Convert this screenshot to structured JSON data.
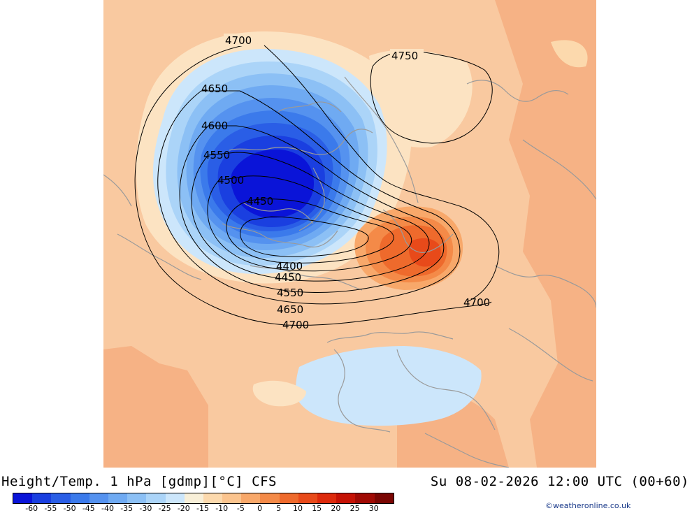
{
  "title_left": "Height/Temp. 1 hPa [gdmp][°C] CFS",
  "title_right": "Su 08-02-2026 12:00 UTC (00+60)",
  "credit": "©weatheronline.co.uk",
  "colorbar": {
    "labels": [
      "-60",
      "-55",
      "-50",
      "-45",
      "-40",
      "-35",
      "-30",
      "-25",
      "-20",
      "-15",
      "-10",
      "-5",
      "0",
      "5",
      "10",
      "15",
      "20",
      "25",
      "30"
    ],
    "colors": [
      "#0a14d8",
      "#1a3fe0",
      "#2a5ee6",
      "#3b7aeb",
      "#5592ef",
      "#6faaf2",
      "#8cc0f5",
      "#abd4f8",
      "#cce6fb",
      "#f8efd8",
      "#fcd9ad",
      "#fbc48e",
      "#f8a86a",
      "#f48a48",
      "#ee6a2c",
      "#e84a1a",
      "#dd2a0c",
      "#c51205",
      "#a00a04",
      "#7a0603"
    ]
  },
  "contour_labels": {
    "left_4700": "4700",
    "top_4750": "4750",
    "left_4650": "4650",
    "left_4600": "4600",
    "left_4550": "4550",
    "left_4500": "4500",
    "inner_4450": "4450",
    "bottom_4400": "4400",
    "bottom_4450": "4450",
    "bottom_4550": "4550",
    "bottom_4650": "4650",
    "bottom_4700": "4700",
    "right_4700": "4700"
  },
  "legend_colors": {
    "background_warm": "#f9c9a0",
    "contour_line": "#000000",
    "coastline": "#9a9a9a"
  }
}
